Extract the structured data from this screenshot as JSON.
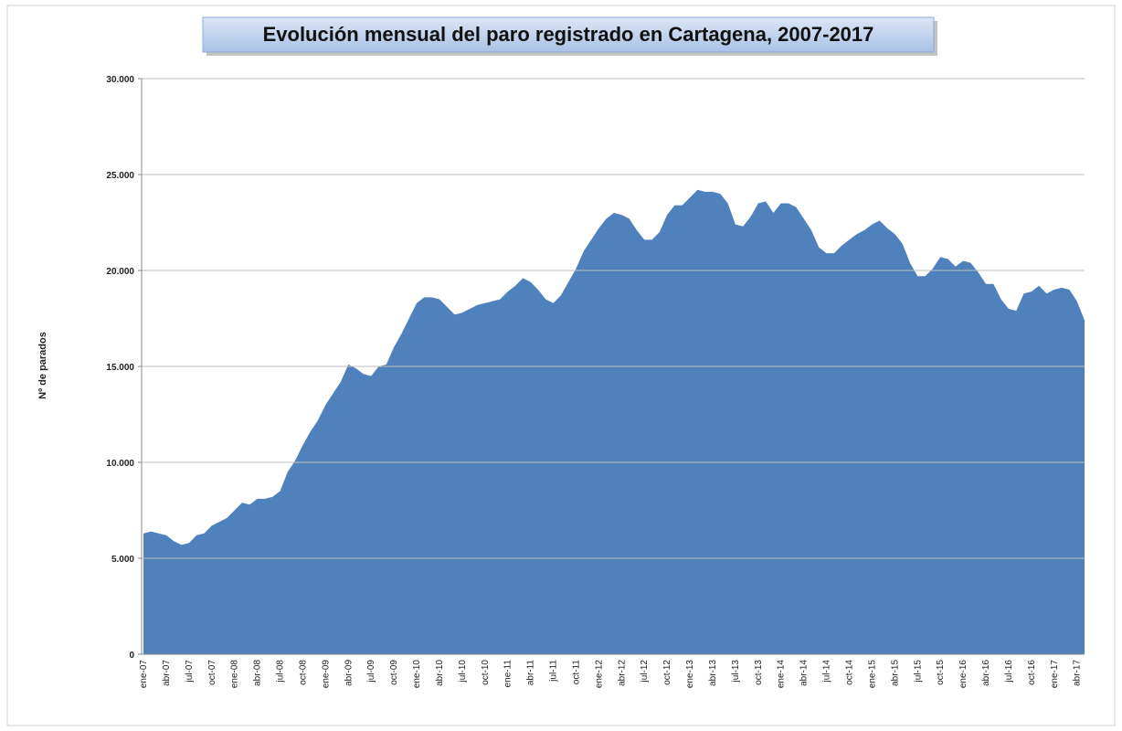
{
  "chart_data": {
    "type": "area",
    "title": "Evolución mensual del paro registrado en Cartagena, 2007-2017",
    "y_label": "Nº de parados",
    "color": "#4f81bd",
    "grid": true,
    "ylim": [
      0,
      30000
    ],
    "yticks": [
      0,
      {
        "value": 5000,
        "label": "5.000"
      },
      {
        "value": 10000,
        "label": "10.000"
      },
      {
        "value": 15000,
        "label": "15.000"
      },
      {
        "value": 20000,
        "label": "20.000"
      },
      {
        "value": 25000,
        "label": "25.000"
      },
      {
        "value": 30000,
        "label": "30.000"
      }
    ],
    "categories": [
      "ene-07",
      null,
      null,
      "abr-07",
      null,
      null,
      "jul-07",
      null,
      null,
      "oct-07",
      null,
      null,
      "ene-08",
      null,
      null,
      "abr-08",
      null,
      null,
      "jul-08",
      null,
      null,
      "oct-08",
      null,
      null,
      "ene-09",
      null,
      null,
      "abr-09",
      null,
      null,
      "jul-09",
      null,
      null,
      "oct-09",
      null,
      null,
      "ene-10",
      null,
      null,
      "abr-10",
      null,
      null,
      "jul-10",
      null,
      null,
      "oct-10",
      null,
      null,
      "ene-11",
      null,
      null,
      "abr-11",
      null,
      null,
      "jul-11",
      null,
      null,
      "oct-11",
      null,
      null,
      "ene-12",
      null,
      null,
      "abr-12",
      null,
      null,
      "jul-12",
      null,
      null,
      "oct-12",
      null,
      null,
      "ene-13",
      null,
      null,
      "abr-13",
      null,
      null,
      "jul-13",
      null,
      null,
      "oct-13",
      null,
      null,
      "ene-14",
      null,
      null,
      "abr-14",
      null,
      null,
      "jul-14",
      null,
      null,
      "oct-14",
      null,
      null,
      "ene-15",
      null,
      null,
      "abr-15",
      null,
      null,
      "jul-15",
      null,
      null,
      "oct-15",
      null,
      null,
      "ene-16",
      null,
      null,
      "abr-16",
      null,
      null,
      "jul-16",
      null,
      null,
      "oct-16",
      null,
      null,
      "ene-17",
      null,
      null,
      "abr-17",
      null
    ],
    "values": [
      6300,
      6400,
      6300,
      6200,
      5900,
      5700,
      5800,
      6200,
      6300,
      6700,
      6900,
      7100,
      7500,
      7900,
      7800,
      8100,
      8100,
      8200,
      8500,
      9500,
      10100,
      10900,
      11600,
      12200,
      13000,
      13600,
      14200,
      15100,
      14900,
      14600,
      14500,
      15000,
      15100,
      16000,
      16700,
      17500,
      18300,
      18600,
      18600,
      18500,
      18100,
      17700,
      17800,
      18000,
      18200,
      18300,
      18400,
      18500,
      18900,
      19200,
      19600,
      19400,
      19000,
      18500,
      18300,
      18700,
      19400,
      20100,
      21000,
      21600,
      22200,
      22700,
      23000,
      22900,
      22700,
      22100,
      21600,
      21600,
      22000,
      22900,
      23400,
      23400,
      23800,
      24200,
      24100,
      24100,
      24000,
      23500,
      22400,
      22300,
      22800,
      23500,
      23600,
      23000,
      23500,
      23500,
      23300,
      22700,
      22100,
      21200,
      20900,
      20900,
      21300,
      21600,
      21900,
      22100,
      22400,
      22600,
      22200,
      21900,
      21400,
      20400,
      19700,
      19700,
      20100,
      20700,
      20600,
      20200,
      20500,
      20400,
      19900,
      19300,
      19300,
      18500,
      18000,
      17900,
      18800,
      18900,
      19200,
      18800,
      19000,
      19100,
      19000,
      18400,
      17400
    ]
  }
}
